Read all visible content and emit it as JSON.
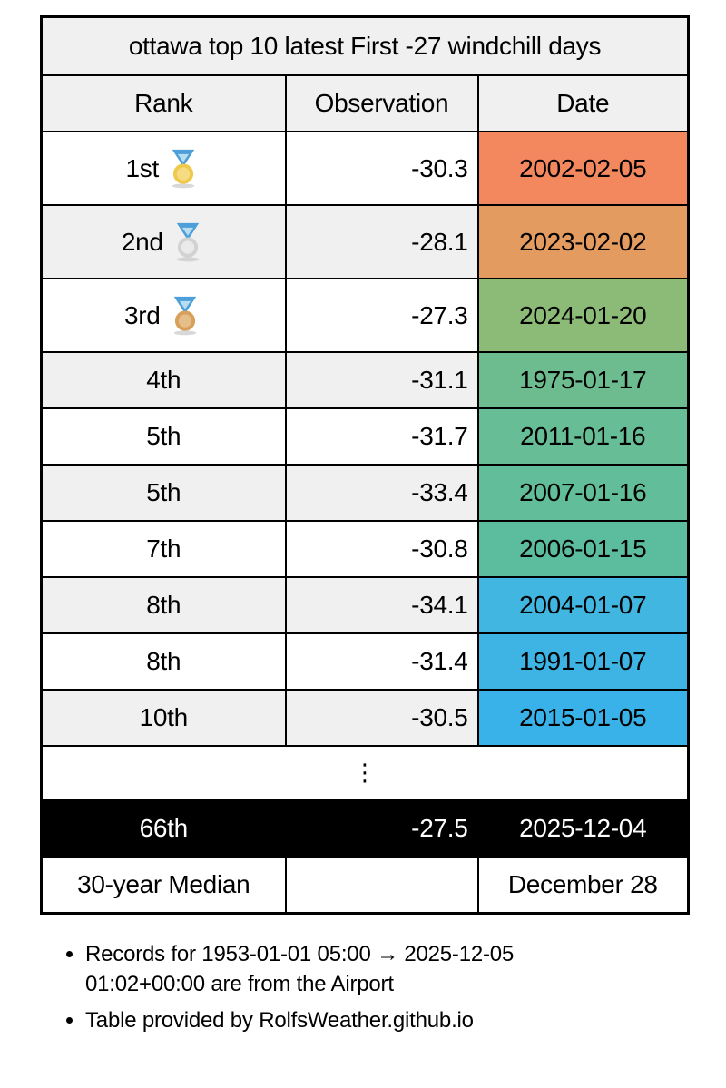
{
  "title": "ottawa top 10 latest First -27 windchill days",
  "columns": [
    "Rank",
    "Observation",
    "Date"
  ],
  "rows": [
    {
      "rank": "1st",
      "medal": "gold",
      "observation": "-30.3",
      "date": "2002-02-05",
      "date_color": "#F3885F"
    },
    {
      "rank": "2nd",
      "medal": "silver",
      "observation": "-28.1",
      "date": "2023-02-02",
      "date_color": "#E39B60"
    },
    {
      "rank": "3rd",
      "medal": "bronze",
      "observation": "-27.3",
      "date": "2024-01-20",
      "date_color": "#8CBB77"
    },
    {
      "rank": "4th",
      "medal": null,
      "observation": "-31.1",
      "date": "1975-01-17",
      "date_color": "#6CBC8F"
    },
    {
      "rank": "5th",
      "medal": null,
      "observation": "-31.7",
      "date": "2011-01-16",
      "date_color": "#66BD96"
    },
    {
      "rank": "5th",
      "medal": null,
      "observation": "-33.4",
      "date": "2007-01-16",
      "date_color": "#61BD9A"
    },
    {
      "rank": "7th",
      "medal": null,
      "observation": "-30.8",
      "date": "2006-01-15",
      "date_color": "#5BBD9E"
    },
    {
      "rank": "8th",
      "medal": null,
      "observation": "-34.1",
      "date": "2004-01-07",
      "date_color": "#41B6E0"
    },
    {
      "rank": "8th",
      "medal": null,
      "observation": "-31.4",
      "date": "1991-01-07",
      "date_color": "#3DB4E4"
    },
    {
      "rank": "10th",
      "medal": null,
      "observation": "-30.5",
      "date": "2015-01-05",
      "date_color": "#38B2E8"
    }
  ],
  "ellipsis": "⋮",
  "current_row": {
    "rank": "66th",
    "observation": "-27.5",
    "date": "2025-12-04",
    "bg": "#000000",
    "fg": "#ffffff"
  },
  "median_row": {
    "label": "30-year Median",
    "observation": "",
    "date": "December 28"
  },
  "footnotes": [
    "Records for 1953-01-01 05:00 → 2025-12-05 01:02+00:00 are from the Airport",
    "Table provided by RolfsWeather.github.io"
  ],
  "medal_colors": {
    "gold": {
      "main": "#EFC94C",
      "light": "#F5DC82"
    },
    "silver": {
      "main": "#D2D2D2",
      "light": "#EAEAEA"
    },
    "bronze": {
      "main": "#D8A15B",
      "light": "#E6BE8A"
    },
    "ribbon": "#4C9FD8",
    "ribbon_light": "#B8DCF0",
    "shadow": "#C8C8C8"
  },
  "style": {
    "header_bg": "#F0F0F0",
    "row_alt_bg": "#F0F0F0",
    "border_color": "#000000"
  },
  "chart_data": {
    "type": "table",
    "title": "ottawa top 10 latest First -27 windchill days",
    "columns": [
      "Rank",
      "Observation",
      "Date"
    ],
    "rows": [
      [
        "1st",
        -30.3,
        "2002-02-05"
      ],
      [
        "2nd",
        -28.1,
        "2023-02-02"
      ],
      [
        "3rd",
        -27.3,
        "2024-01-20"
      ],
      [
        "4th",
        -31.1,
        "1975-01-17"
      ],
      [
        "5th",
        -31.7,
        "2011-01-16"
      ],
      [
        "5th",
        -33.4,
        "2007-01-16"
      ],
      [
        "7th",
        -30.8,
        "2006-01-15"
      ],
      [
        "8th",
        -34.1,
        "2004-01-07"
      ],
      [
        "8th",
        -31.4,
        "1991-01-07"
      ],
      [
        "10th",
        -30.5,
        "2015-01-05"
      ],
      [
        "66th",
        -27.5,
        "2025-12-04"
      ],
      [
        "30-year Median",
        null,
        "December 28"
      ]
    ]
  }
}
